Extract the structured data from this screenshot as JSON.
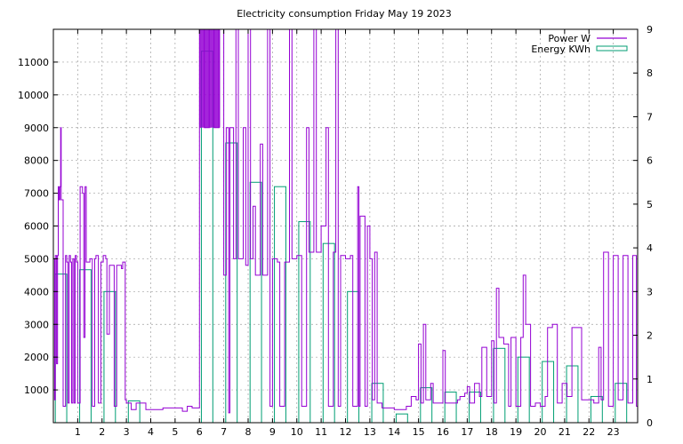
{
  "chart_data": {
    "type": "line",
    "title": "Electricity consumption Friday May 19 2023",
    "xlabel": "",
    "ylabel": "",
    "y2label": "",
    "xlim": [
      0,
      24
    ],
    "ylim": [
      0,
      12000
    ],
    "y2lim": [
      0,
      9
    ],
    "x_ticks": [
      "1",
      "2",
      "3",
      "4",
      "5",
      "6",
      "7",
      "8",
      "9",
      "10",
      "11",
      "12",
      "13",
      "14",
      "15",
      "16",
      "17",
      "18",
      "19",
      "20",
      "21",
      "22",
      "23"
    ],
    "x_tick_values": [
      1,
      2,
      3,
      4,
      5,
      6,
      7,
      8,
      9,
      10,
      11,
      12,
      13,
      14,
      15,
      16,
      17,
      18,
      19,
      20,
      21,
      22,
      23
    ],
    "y_ticks": [
      1000,
      2000,
      3000,
      4000,
      5000,
      6000,
      7000,
      8000,
      9000,
      10000,
      11000
    ],
    "y2_ticks": [
      0,
      1,
      2,
      3,
      4,
      5,
      6,
      7,
      8,
      9
    ],
    "grid": true,
    "legend_position": "top-right",
    "series": [
      {
        "name": "Power W",
        "axis": "left",
        "color": "#9400d3",
        "style": "step",
        "points": [
          [
            0.0,
            5000
          ],
          [
            0.05,
            700
          ],
          [
            0.08,
            5100
          ],
          [
            0.13,
            1800
          ],
          [
            0.17,
            5100
          ],
          [
            0.2,
            7200
          ],
          [
            0.23,
            6800
          ],
          [
            0.27,
            7200
          ],
          [
            0.3,
            9000
          ],
          [
            0.32,
            6800
          ],
          [
            0.4,
            500
          ],
          [
            0.5,
            5100
          ],
          [
            0.55,
            4900
          ],
          [
            0.6,
            600
          ],
          [
            0.65,
            5100
          ],
          [
            0.7,
            4900
          ],
          [
            0.75,
            600
          ],
          [
            0.8,
            5000
          ],
          [
            0.85,
            600
          ],
          [
            0.9,
            5100
          ],
          [
            0.95,
            4900
          ],
          [
            1.0,
            600
          ],
          [
            1.1,
            7200
          ],
          [
            1.2,
            7000
          ],
          [
            1.25,
            2600
          ],
          [
            1.3,
            7200
          ],
          [
            1.35,
            4900
          ],
          [
            1.5,
            5000
          ],
          [
            1.6,
            500
          ],
          [
            1.7,
            5000
          ],
          [
            1.75,
            5100
          ],
          [
            1.85,
            600
          ],
          [
            1.95,
            4900
          ],
          [
            2.05,
            5100
          ],
          [
            2.15,
            5000
          ],
          [
            2.2,
            2700
          ],
          [
            2.3,
            4800
          ],
          [
            2.5,
            500
          ],
          [
            2.6,
            4800
          ],
          [
            2.8,
            4700
          ],
          [
            2.85,
            4900
          ],
          [
            2.95,
            700
          ],
          [
            3.0,
            600
          ],
          [
            3.2,
            400
          ],
          [
            3.4,
            600
          ],
          [
            3.8,
            400
          ],
          [
            4.5,
            450
          ],
          [
            5.3,
            350
          ],
          [
            5.5,
            500
          ],
          [
            5.7,
            450
          ],
          [
            6.0,
            500
          ],
          [
            6.0,
            12000
          ],
          [
            6.2,
            9000
          ],
          [
            6.4,
            12000
          ],
          [
            6.6,
            9000
          ],
          [
            6.8,
            12000
          ],
          [
            7.0,
            4500
          ],
          [
            7.1,
            9000
          ],
          [
            7.2,
            300
          ],
          [
            7.25,
            9000
          ],
          [
            7.4,
            5000
          ],
          [
            7.5,
            12000
          ],
          [
            7.6,
            5000
          ],
          [
            7.8,
            9000
          ],
          [
            7.9,
            4800
          ],
          [
            8.0,
            12000
          ],
          [
            8.1,
            5000
          ],
          [
            8.2,
            6600
          ],
          [
            8.3,
            4500
          ],
          [
            8.5,
            8500
          ],
          [
            8.6,
            4500
          ],
          [
            8.8,
            12000
          ],
          [
            8.9,
            500
          ],
          [
            9.0,
            5000
          ],
          [
            9.2,
            4900
          ],
          [
            9.3,
            500
          ],
          [
            9.5,
            4900
          ],
          [
            9.7,
            12000
          ],
          [
            9.8,
            5000
          ],
          [
            10.0,
            5100
          ],
          [
            10.2,
            500
          ],
          [
            10.4,
            9000
          ],
          [
            10.5,
            5200
          ],
          [
            10.7,
            12000
          ],
          [
            10.8,
            5200
          ],
          [
            11.0,
            6000
          ],
          [
            11.2,
            9000
          ],
          [
            11.3,
            500
          ],
          [
            11.5,
            5200
          ],
          [
            11.6,
            12000
          ],
          [
            11.7,
            500
          ],
          [
            11.8,
            5100
          ],
          [
            12.0,
            5000
          ],
          [
            12.2,
            5100
          ],
          [
            12.3,
            500
          ],
          [
            12.5,
            7200
          ],
          [
            12.55,
            500
          ],
          [
            12.6,
            6300
          ],
          [
            12.8,
            500
          ],
          [
            12.9,
            6000
          ],
          [
            13.0,
            5000
          ],
          [
            13.1,
            700
          ],
          [
            13.2,
            5200
          ],
          [
            13.3,
            600
          ],
          [
            13.5,
            450
          ],
          [
            14.0,
            400
          ],
          [
            14.5,
            500
          ],
          [
            14.7,
            800
          ],
          [
            14.9,
            700
          ],
          [
            15.0,
            2400
          ],
          [
            15.1,
            600
          ],
          [
            15.2,
            3000
          ],
          [
            15.3,
            700
          ],
          [
            15.5,
            1200
          ],
          [
            15.6,
            600
          ],
          [
            16.0,
            2200
          ],
          [
            16.1,
            600
          ],
          [
            16.6,
            700
          ],
          [
            16.7,
            800
          ],
          [
            16.9,
            900
          ],
          [
            17.0,
            1100
          ],
          [
            17.1,
            600
          ],
          [
            17.3,
            1200
          ],
          [
            17.5,
            800
          ],
          [
            17.6,
            2300
          ],
          [
            17.8,
            800
          ],
          [
            18.0,
            2500
          ],
          [
            18.1,
            600
          ],
          [
            18.2,
            4100
          ],
          [
            18.3,
            2600
          ],
          [
            18.5,
            2400
          ],
          [
            18.7,
            500
          ],
          [
            18.8,
            2600
          ],
          [
            19.0,
            500
          ],
          [
            19.2,
            2600
          ],
          [
            19.3,
            4500
          ],
          [
            19.4,
            3000
          ],
          [
            19.6,
            500
          ],
          [
            19.8,
            600
          ],
          [
            20.0,
            500
          ],
          [
            20.2,
            800
          ],
          [
            20.3,
            2900
          ],
          [
            20.5,
            3000
          ],
          [
            20.7,
            600
          ],
          [
            20.9,
            1200
          ],
          [
            21.1,
            800
          ],
          [
            21.3,
            2900
          ],
          [
            21.5,
            2900
          ],
          [
            21.7,
            700
          ],
          [
            22.0,
            700
          ],
          [
            22.2,
            600
          ],
          [
            22.4,
            2300
          ],
          [
            22.5,
            700
          ],
          [
            22.6,
            5200
          ],
          [
            22.8,
            500
          ],
          [
            23.0,
            5100
          ],
          [
            23.2,
            700
          ],
          [
            23.4,
            5100
          ],
          [
            23.6,
            600
          ],
          [
            23.8,
            5100
          ],
          [
            23.95,
            500
          ]
        ]
      },
      {
        "name": "Energy KWh",
        "axis": "right",
        "color": "#009e73",
        "style": "bars",
        "hours": [
          0,
          1,
          2,
          3,
          4,
          5,
          6,
          7,
          8,
          9,
          10,
          11,
          12,
          13,
          14,
          15,
          16,
          17,
          18,
          19,
          20,
          21,
          22,
          23
        ],
        "values": [
          3.4,
          3.5,
          3.0,
          0.5,
          0.0,
          0.0,
          8.5,
          6.4,
          5.5,
          5.4,
          4.6,
          4.1,
          3.0,
          0.9,
          0.2,
          0.8,
          0.7,
          0.7,
          1.7,
          1.5,
          1.4,
          1.3,
          0.6,
          0.9
        ]
      }
    ]
  }
}
